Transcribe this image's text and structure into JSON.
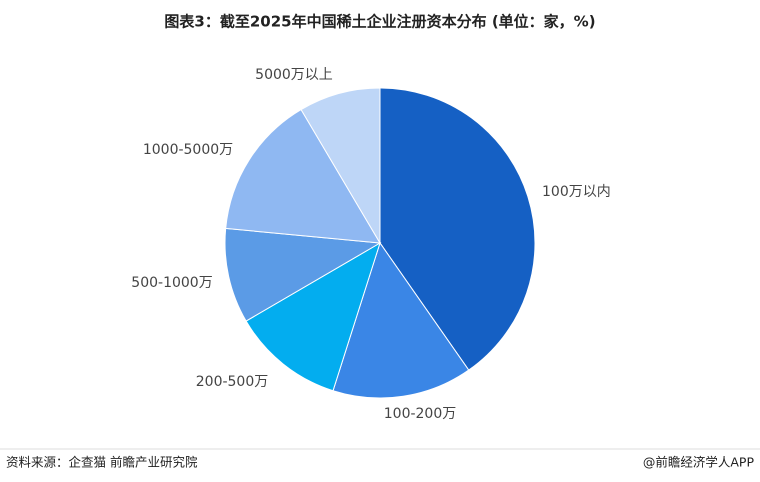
{
  "chart_data": {
    "type": "pie",
    "title": "图表3：截至2025年中国稀土企业注册资本分布 (单位：家，%)",
    "categories": [
      "100万以内",
      "100-200万",
      "200-500万",
      "500-1000万",
      "1000-5000万",
      "5000万以上"
    ],
    "values": [
      40.3,
      14.6,
      11.7,
      9.9,
      15.0,
      8.5
    ],
    "colors": [
      "#1560c4",
      "#3a86e6",
      "#03adef",
      "#5b9be6",
      "#8fb8f2",
      "#bed6f7"
    ]
  },
  "footer": {
    "source": "资料来源：企查猫 前瞻产业研究院",
    "brand": "@前瞻经济学人APP"
  }
}
